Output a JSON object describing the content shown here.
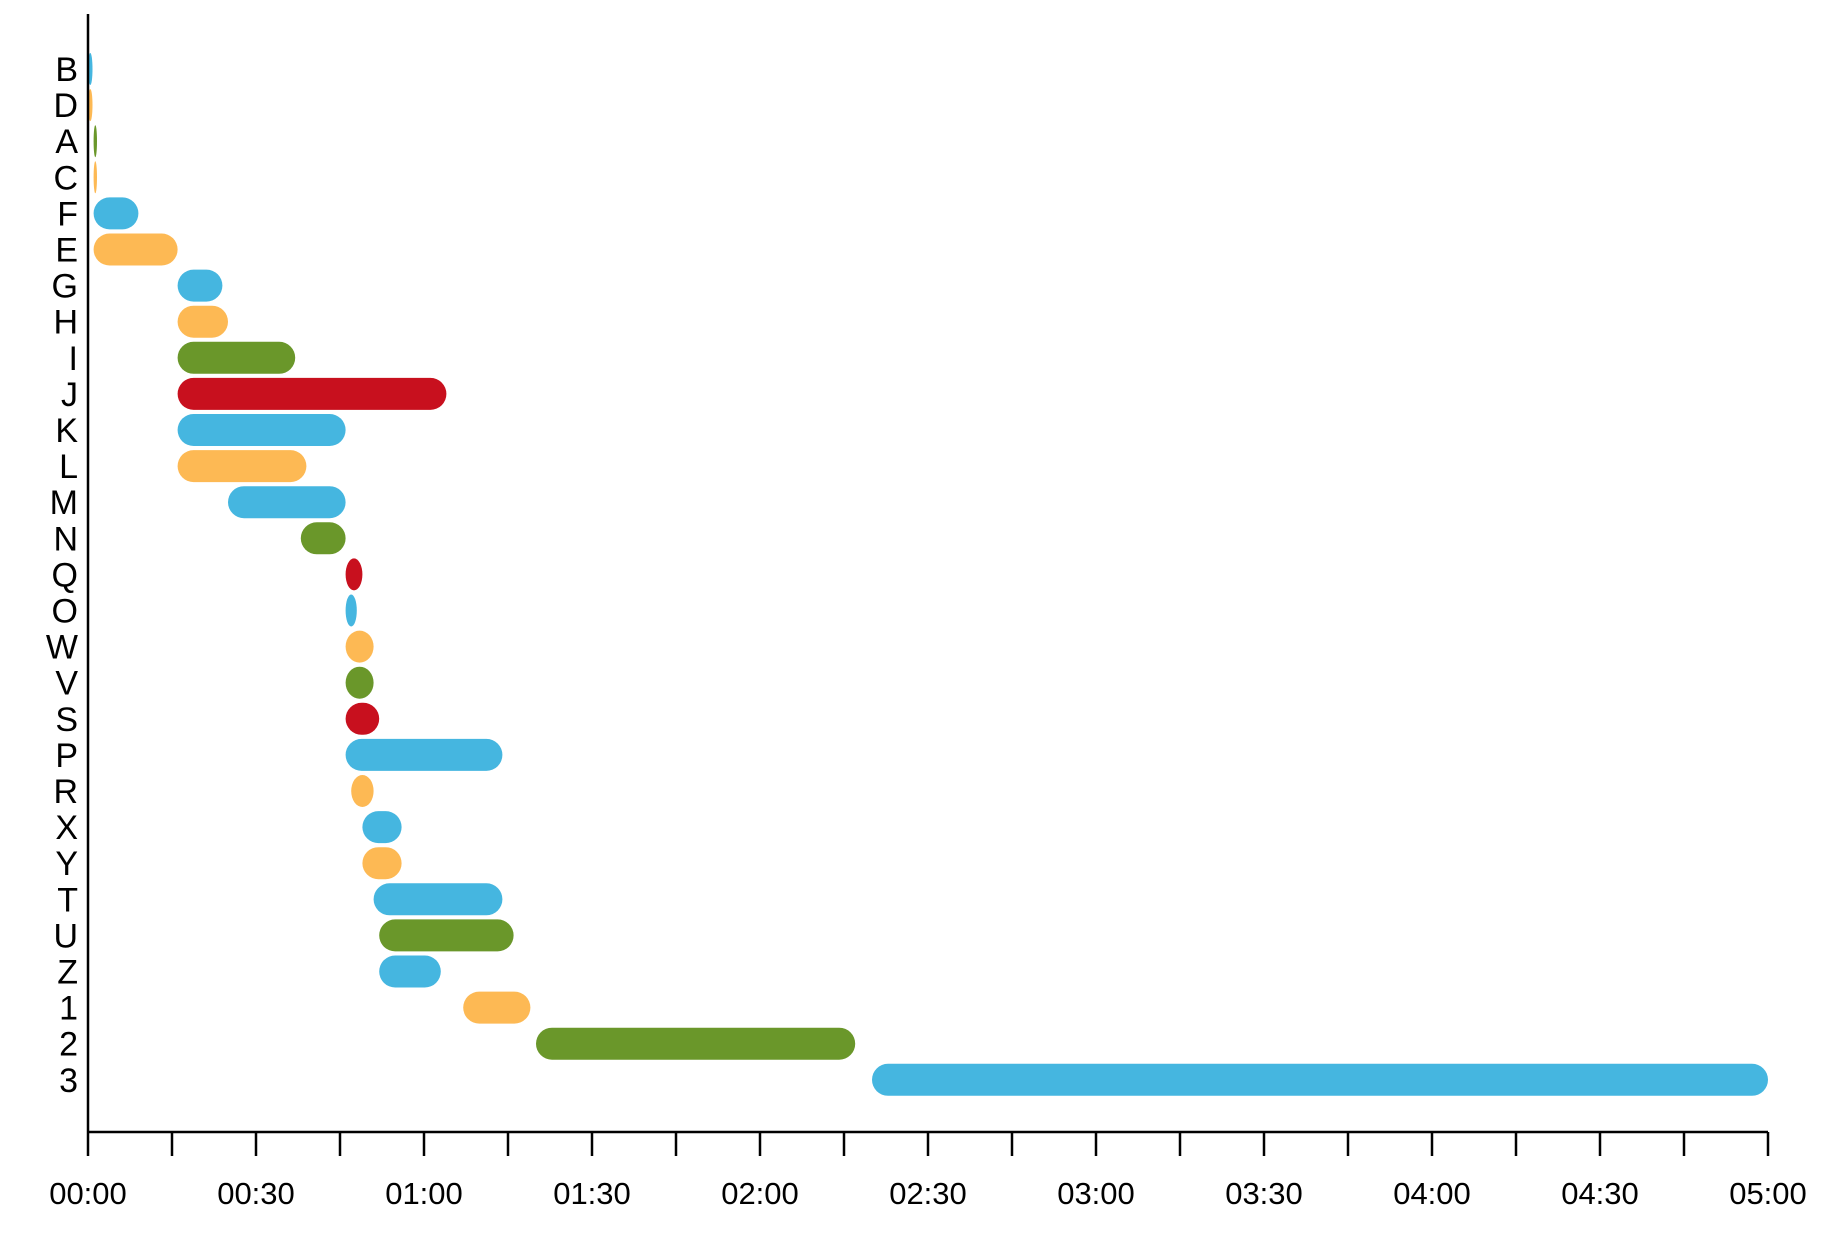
{
  "chart_data": {
    "type": "bar",
    "orientation": "horizontal",
    "chart_kind": "gantt",
    "title": "",
    "xlabel": "",
    "ylabel": "",
    "x_unit": "minutes",
    "xlim": [
      0,
      300
    ],
    "x_ticks": [
      {
        "value": 0,
        "label": "00:00"
      },
      {
        "value": 30,
        "label": "00:30"
      },
      {
        "value": 60,
        "label": "01:00"
      },
      {
        "value": 90,
        "label": "01:30"
      },
      {
        "value": 120,
        "label": "02:00"
      },
      {
        "value": 150,
        "label": "02:30"
      },
      {
        "value": 180,
        "label": "03:00"
      },
      {
        "value": 210,
        "label": "03:30"
      },
      {
        "value": 240,
        "label": "04:00"
      },
      {
        "value": 270,
        "label": "04:30"
      },
      {
        "value": 300,
        "label": "05:00"
      }
    ],
    "minor_tick_step": 15,
    "grid": false,
    "legend": "none",
    "categories": [
      "B",
      "D",
      "A",
      "C",
      "F",
      "E",
      "G",
      "H",
      "I",
      "J",
      "K",
      "L",
      "M",
      "N",
      "Q",
      "O",
      "W",
      "V",
      "S",
      "P",
      "R",
      "X",
      "Y",
      "T",
      "U",
      "Z",
      "1",
      "2",
      "3"
    ],
    "tasks": [
      {
        "label": "B",
        "start": 0,
        "end": 0.8,
        "color": "#45b6e0"
      },
      {
        "label": "D",
        "start": 0,
        "end": 0.8,
        "color": "#fdb954"
      },
      {
        "label": "A",
        "start": 1,
        "end": 1.6,
        "color": "#6a972a"
      },
      {
        "label": "C",
        "start": 1,
        "end": 1.6,
        "color": "#fdb954"
      },
      {
        "label": "F",
        "start": 1,
        "end": 9,
        "color": "#45b6e0"
      },
      {
        "label": "E",
        "start": 1,
        "end": 16,
        "color": "#fdb954"
      },
      {
        "label": "G",
        "start": 16,
        "end": 24,
        "color": "#45b6e0"
      },
      {
        "label": "H",
        "start": 16,
        "end": 25,
        "color": "#fdb954"
      },
      {
        "label": "I",
        "start": 16,
        "end": 37,
        "color": "#6a972a"
      },
      {
        "label": "J",
        "start": 16,
        "end": 64,
        "color": "#c8101e"
      },
      {
        "label": "K",
        "start": 16,
        "end": 46,
        "color": "#45b6e0"
      },
      {
        "label": "L",
        "start": 16,
        "end": 39,
        "color": "#fdb954"
      },
      {
        "label": "M",
        "start": 25,
        "end": 46,
        "color": "#45b6e0"
      },
      {
        "label": "N",
        "start": 38,
        "end": 46,
        "color": "#6a972a"
      },
      {
        "label": "Q",
        "start": 46,
        "end": 49,
        "color": "#c8101e"
      },
      {
        "label": "O",
        "start": 46,
        "end": 48,
        "color": "#45b6e0"
      },
      {
        "label": "W",
        "start": 46,
        "end": 51,
        "color": "#fdb954"
      },
      {
        "label": "V",
        "start": 46,
        "end": 51,
        "color": "#6a972a"
      },
      {
        "label": "S",
        "start": 46,
        "end": 52,
        "color": "#c8101e"
      },
      {
        "label": "P",
        "start": 46,
        "end": 74,
        "color": "#45b6e0"
      },
      {
        "label": "R",
        "start": 47,
        "end": 51,
        "color": "#fdb954"
      },
      {
        "label": "X",
        "start": 49,
        "end": 56,
        "color": "#45b6e0"
      },
      {
        "label": "Y",
        "start": 49,
        "end": 56,
        "color": "#fdb954"
      },
      {
        "label": "T",
        "start": 51,
        "end": 74,
        "color": "#45b6e0"
      },
      {
        "label": "U",
        "start": 52,
        "end": 76,
        "color": "#6a972a"
      },
      {
        "label": "Z",
        "start": 52,
        "end": 63,
        "color": "#45b6e0"
      },
      {
        "label": "1",
        "start": 67,
        "end": 79,
        "color": "#fdb954"
      },
      {
        "label": "2",
        "start": 80,
        "end": 137,
        "color": "#6a972a"
      },
      {
        "label": "3",
        "start": 140,
        "end": 300,
        "color": "#45b6e0"
      }
    ]
  }
}
